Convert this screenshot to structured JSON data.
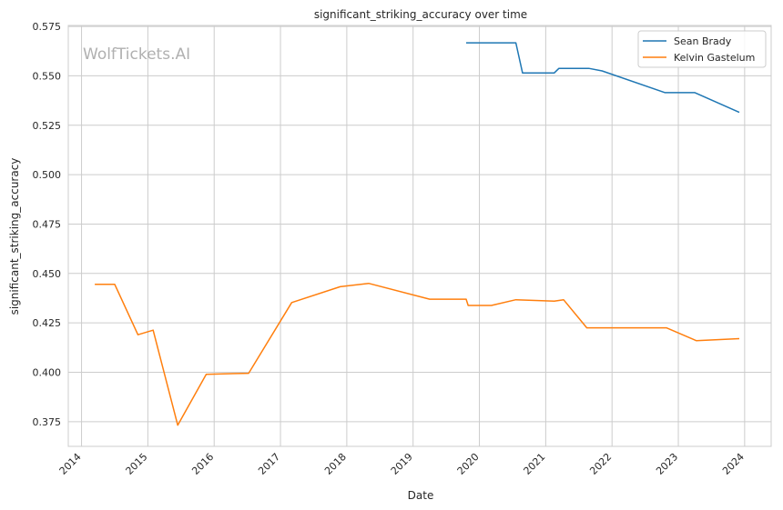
{
  "watermark": "WolfTickets.AI",
  "chart_data": {
    "type": "line",
    "title": "significant_striking_accuracy over time",
    "xlabel": "Date",
    "ylabel": "significant_striking_accuracy",
    "xlim": [
      2013.8,
      2024.4
    ],
    "ylim": [
      0.3625,
      0.5755
    ],
    "x_ticks": [
      2014,
      2015,
      2016,
      2017,
      2018,
      2019,
      2020,
      2021,
      2022,
      2023,
      2024
    ],
    "x_tick_labels": [
      "2014",
      "2015",
      "2016",
      "2017",
      "2018",
      "2019",
      "2020",
      "2021",
      "2022",
      "2023",
      "2024"
    ],
    "y_ticks": [
      0.375,
      0.4,
      0.425,
      0.45,
      0.475,
      0.5,
      0.525,
      0.55,
      0.575
    ],
    "y_tick_labels": [
      "0.375",
      "0.400",
      "0.425",
      "0.450",
      "0.475",
      "0.500",
      "0.525",
      "0.550",
      "0.575"
    ],
    "grid": true,
    "legend_position": "top-right",
    "series": [
      {
        "name": "Sean Brady",
        "color": "#1f77b4",
        "points": [
          [
            2019.8,
            0.5667
          ],
          [
            2020.55,
            0.5667
          ],
          [
            2020.65,
            0.5515
          ],
          [
            2021.13,
            0.5515
          ],
          [
            2021.2,
            0.5538
          ],
          [
            2021.65,
            0.5538
          ],
          [
            2021.85,
            0.5525
          ],
          [
            2022.8,
            0.5415
          ],
          [
            2023.25,
            0.5415
          ],
          [
            2023.92,
            0.5315
          ]
        ]
      },
      {
        "name": "Kelvin Gastelum",
        "color": "#ff7f0e",
        "points": [
          [
            2014.2,
            0.4445
          ],
          [
            2014.5,
            0.4445
          ],
          [
            2014.85,
            0.419
          ],
          [
            2015.08,
            0.4213
          ],
          [
            2015.45,
            0.3732
          ],
          [
            2015.88,
            0.399
          ],
          [
            2016.52,
            0.3995
          ],
          [
            2017.17,
            0.4353
          ],
          [
            2017.9,
            0.4433
          ],
          [
            2018.33,
            0.445
          ],
          [
            2019.25,
            0.437
          ],
          [
            2019.8,
            0.437
          ],
          [
            2019.83,
            0.4338
          ],
          [
            2020.18,
            0.4338
          ],
          [
            2020.55,
            0.4367
          ],
          [
            2021.13,
            0.436
          ],
          [
            2021.27,
            0.4367
          ],
          [
            2021.62,
            0.4225
          ],
          [
            2022.82,
            0.4225
          ],
          [
            2023.27,
            0.416
          ],
          [
            2023.92,
            0.417
          ]
        ]
      }
    ]
  }
}
